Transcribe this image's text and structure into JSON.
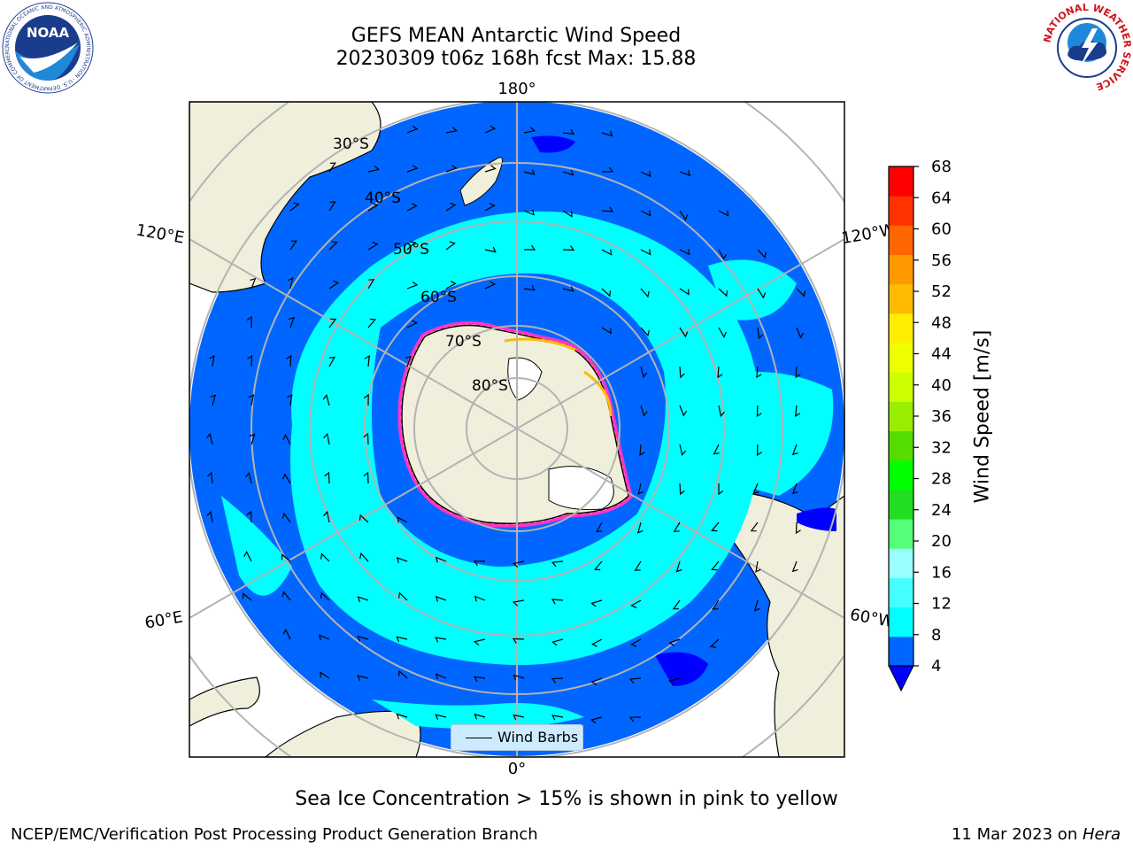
{
  "header": {
    "title_line1": "GEFS MEAN Antarctic Wind Speed",
    "title_line2": "20230309 t06z 168h fcst   Max: 15.88"
  },
  "logos": {
    "noaa_text": "NOAA",
    "noaa_ring_text": "NATIONAL OCEANIC AND ATMOSPHERIC ADMINISTRATION · U.S. DEPARTMENT OF COMMERCE",
    "nws_ring_text": "NATIONAL WEATHER SERVICE"
  },
  "map": {
    "projection": "south-polar-stereographic",
    "longitude_labels": {
      "top": "180°",
      "bottom": "0°",
      "upper_left": "120°E",
      "upper_right": "120°W",
      "lower_left": "60°E",
      "lower_right": "60°W"
    },
    "latitude_labels": [
      "30°S",
      "40°S",
      "50°S",
      "60°S",
      "70°S",
      "80°S"
    ],
    "colors": {
      "ocean_4_8": "#0066ff",
      "ocean_8_12": "#00ffff",
      "ocean_12_16": "#44ffff",
      "land": "#efefdb",
      "sea_ice": "#ff33cc",
      "below_4": "#0000ff"
    }
  },
  "legend": {
    "label": "Wind Barbs"
  },
  "colorbar": {
    "label": "Wind Speed [m/s]",
    "ticks": [
      "4",
      "8",
      "12",
      "16",
      "20",
      "24",
      "28",
      "32",
      "36",
      "40",
      "44",
      "48",
      "52",
      "56",
      "60",
      "64",
      "68"
    ],
    "colors": [
      "#0066ff",
      "#00ffff",
      "#44ffff",
      "#99ffff",
      "#55ff77",
      "#22dd22",
      "#00ff00",
      "#55dd00",
      "#99ee00",
      "#ccff00",
      "#eeff00",
      "#ffee00",
      "#ffbb00",
      "#ff9900",
      "#ff6600",
      "#ff3300",
      "#ff0000"
    ],
    "under_color": "#0000ff"
  },
  "notes": {
    "sea_ice": "Sea Ice Concentration > 15% is shown in pink to yellow",
    "credit": "NCEP/EMC/Verification Post Processing Product Generation Branch",
    "date": "11 Mar 2023 on ",
    "system": "Hera"
  }
}
